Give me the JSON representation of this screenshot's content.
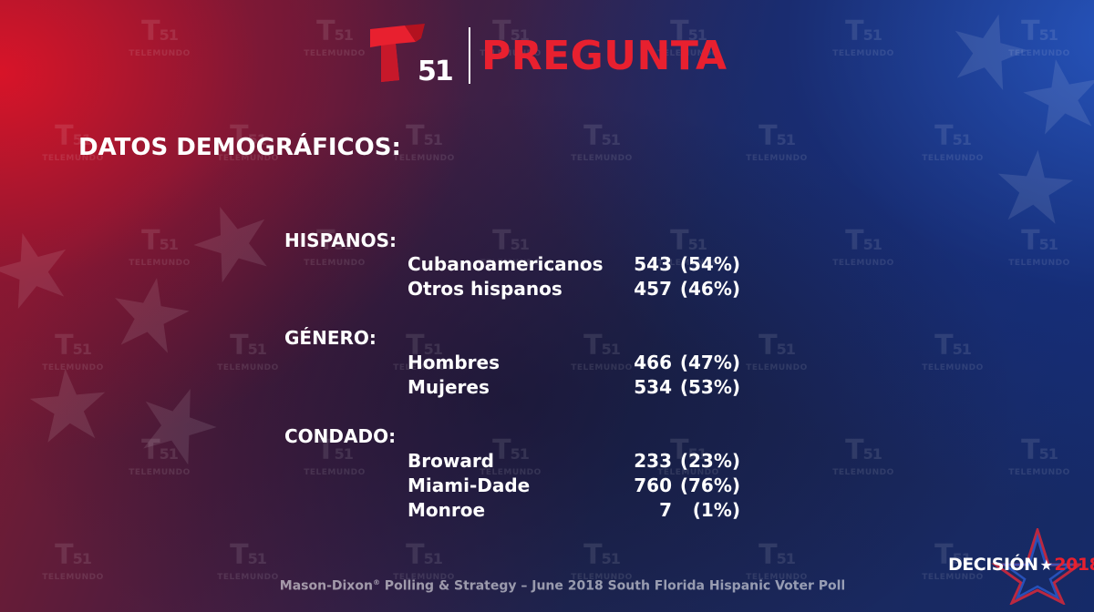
{
  "brand": {
    "logo_number": "51",
    "title": "PREGUNTA",
    "watermark_number": "51",
    "watermark_text": "TELEMUNDO",
    "accent_color": "#e8202f"
  },
  "heading": "DATOS DEMOGRÁFICOS:",
  "groups": [
    {
      "title": "HISPANOS:",
      "rows": [
        {
          "label": "Cubanoamericanos",
          "count": "543",
          "pct": "(54%)"
        },
        {
          "label": "Otros hispanos",
          "count": "457",
          "pct": "(46%)"
        }
      ]
    },
    {
      "title": "GÉNERO:",
      "rows": [
        {
          "label": "Hombres",
          "count": "466",
          "pct": "(47%)"
        },
        {
          "label": "Mujeres",
          "count": "534",
          "pct": "(53%)"
        }
      ]
    },
    {
      "title": "CONDADO:",
      "rows": [
        {
          "label": "Broward",
          "count": "233",
          "pct": "(23%)"
        },
        {
          "label": "Miami-Dade",
          "count": "760",
          "pct": "(76%)"
        },
        {
          "label": "Monroe",
          "count": "7",
          "pct": "(1%)"
        }
      ]
    }
  ],
  "footer": {
    "text_before": "Mason-Dixon",
    "registered": "®",
    "text_after": " Polling & Strategy – June 2018 South Florida Hispanic Voter Poll"
  },
  "badge": {
    "word": "DECISIÓN",
    "star": "★",
    "year": "2018"
  }
}
